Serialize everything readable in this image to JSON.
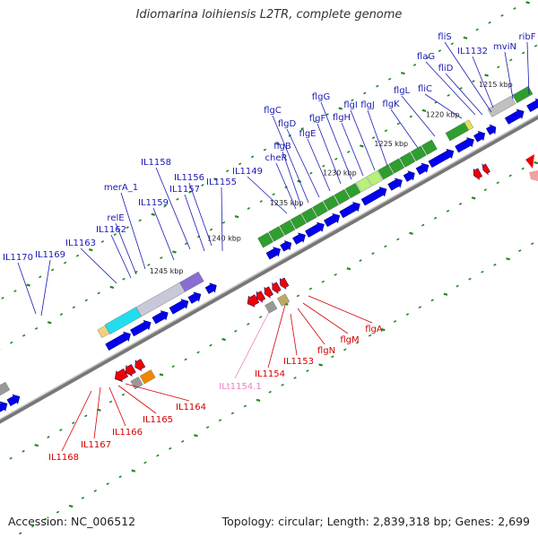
{
  "map": {
    "title": "Idiomarina loihiensis L2TR, complete genome",
    "accession": "Accession: NC_006512",
    "summary": "Topology: circular; Length: 2,839,318 bp; Genes: 2,699"
  },
  "scale_labels": [
    "1215 kbp",
    "1220 kbp",
    "1225 kbp",
    "1230 kbp",
    "1235 kbp",
    "1240 kbp",
    "1245 kbp"
  ],
  "forward_genes": [
    "fliS",
    "IL1132",
    "mviN",
    "ribF",
    "fliD",
    "fliC",
    "flaG",
    "flgL",
    "flgK",
    "flgJ",
    "flgI",
    "flgH",
    "flgG",
    "flgF",
    "flgE",
    "flgD",
    "flgC",
    "flgB",
    "cheR",
    "IL1149",
    "IL1155",
    "IL1156",
    "IL1157",
    "IL1158",
    "IL1159",
    "merA_1",
    "relE",
    "IL1162",
    "IL1163",
    "IL1169",
    "IL1170"
  ],
  "reverse_genes": [
    "flgA",
    "flgM",
    "flgN",
    "IL1153",
    "IL1154",
    "IL1164",
    "IL1165",
    "IL1166",
    "IL1167",
    "IL1168"
  ],
  "pseudo_genes": [
    "ILt1154.1"
  ],
  "colors": {
    "forward_label": "#1a1ab4",
    "reverse_label": "#d40000",
    "pseudo_label": "#f080c0",
    "cds_forward": "#0000ee",
    "cds_reverse": "#ee0000",
    "cog_flagella": "#2e9e2e",
    "cog_light_green": "#b8f07a",
    "cog_cyan": "#22ddee",
    "cog_purple": "#8a6fd0",
    "cog_grey": "#999999",
    "cog_steel_blue": "#4a86b8",
    "cog_orange": "#ee8800",
    "backbone": "#777777",
    "tick": "#1f8a1f"
  }
}
